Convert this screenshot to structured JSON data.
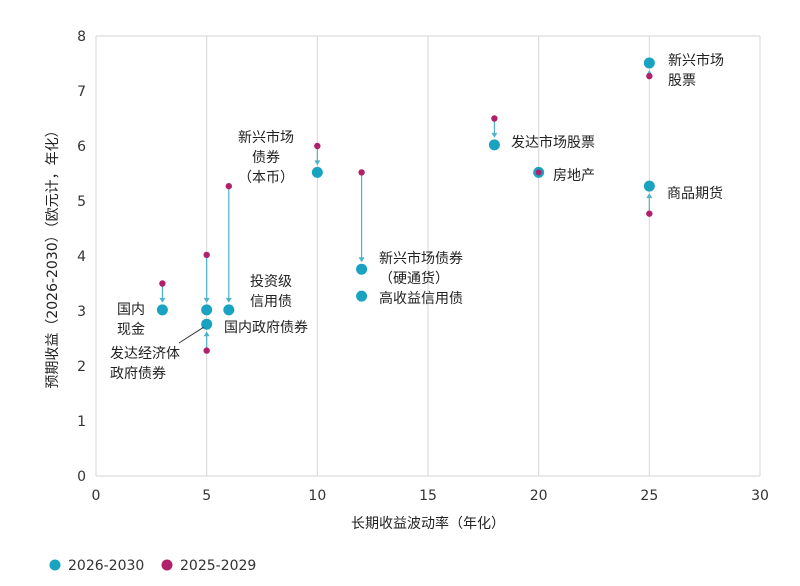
{
  "chart_data": {
    "type": "scatter",
    "title": "",
    "xlabel": "长期收益波动率（年化）",
    "ylabel": "预期收益（2026-2030）（欧元计，年化）",
    "xlim": [
      0,
      30
    ],
    "ylim": [
      0,
      8
    ],
    "xticks": [
      0,
      5,
      10,
      15,
      20,
      25,
      30
    ],
    "yticks": [
      0,
      1,
      2,
      3,
      4,
      5,
      6,
      7,
      8
    ],
    "grid": "vertical",
    "legend": "bottom-left",
    "series": [
      {
        "name": "2026-2030",
        "color": "#1aa3c0"
      },
      {
        "name": "2025-2029",
        "color": "#b0206b"
      }
    ],
    "points": [
      {
        "id": "cash",
        "label": "国内\n现金",
        "x": 3,
        "y_2026": 3.02,
        "y_2025": 3.5
      },
      {
        "id": "dm-govt",
        "label": "发达经济体\n政府债券",
        "x": 5,
        "y_2026": 2.76,
        "y_2025": 2.28
      },
      {
        "id": "domestic-govt",
        "label": "国内政府债券",
        "x": 5,
        "y_2026": 3.02,
        "y_2025": 4.02
      },
      {
        "id": "ig-credit",
        "label": "投资级\n信用债",
        "x": 6,
        "y_2026": 3.02,
        "y_2025": 5.27
      },
      {
        "id": "em-local",
        "label": "新兴市场\n债券\n（本币）",
        "x": 10,
        "y_2026": 5.52,
        "y_2025": 6.0
      },
      {
        "id": "em-hard",
        "label": "新兴市场债券\n（硬通货）",
        "x": 12,
        "y_2026": 3.76,
        "y_2025": 5.52
      },
      {
        "id": "high-yield",
        "label": "高收益信用债",
        "x": 12,
        "y_2026": 3.27,
        "y_2025": null
      },
      {
        "id": "dm-equity",
        "label": "发达市场股票",
        "x": 18,
        "y_2026": 6.02,
        "y_2025": 6.5
      },
      {
        "id": "real-estate",
        "label": "房地产",
        "x": 20,
        "y_2026": 5.52,
        "y_2025": 5.52
      },
      {
        "id": "em-equity",
        "label": "新兴市场\n股票",
        "x": 25,
        "y_2026": 7.51,
        "y_2025": 7.27
      },
      {
        "id": "commodities",
        "label": "商品期货",
        "x": 25,
        "y_2026": 5.27,
        "y_2025": 4.77
      }
    ]
  }
}
